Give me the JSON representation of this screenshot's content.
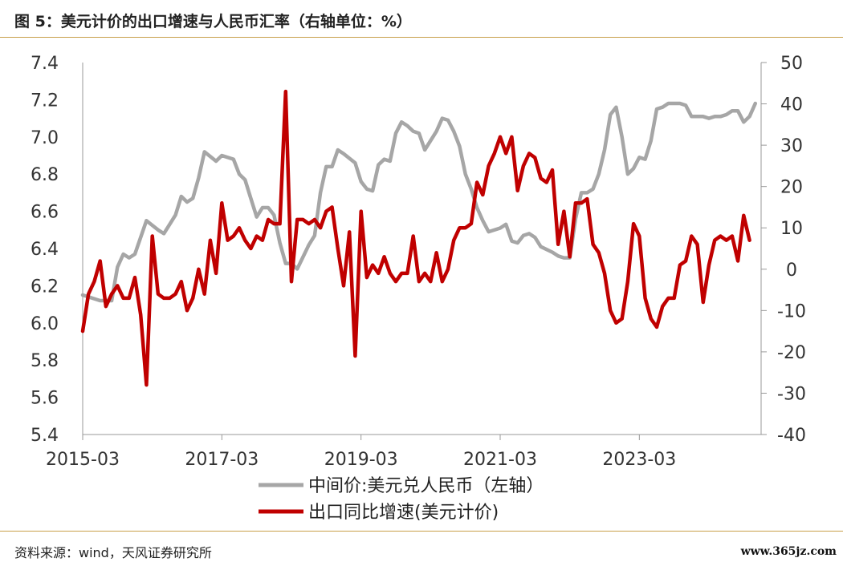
{
  "header": {
    "title": "图 5：美元计价的出口增速与人民币汇率（右轴单位：%）"
  },
  "footer": {
    "source": "资料来源：wind，天风证券研究所",
    "watermark": "www.365jz.com"
  },
  "chart_data": {
    "type": "line",
    "x_ticks": [
      "2015-03",
      "2017-03",
      "2019-03",
      "2021-03",
      "2023-03"
    ],
    "x_range": [
      "2015-03",
      "2024-12"
    ],
    "y_left": {
      "range": [
        5.4,
        7.4
      ],
      "ticks": [
        "5.4",
        "5.6",
        "5.8",
        "6.0",
        "6.2",
        "6.4",
        "6.6",
        "6.8",
        "7.0",
        "7.2",
        "7.4"
      ]
    },
    "y_right": {
      "range": [
        -40,
        50
      ],
      "ticks": [
        "-40",
        "-30",
        "-20",
        "-10",
        "0",
        "10",
        "20",
        "30",
        "40",
        "50"
      ]
    },
    "grid": false,
    "legend_position": "bottom-center",
    "series": [
      {
        "name": "中间价:美元兑人民币（左轴）",
        "axis": "left",
        "color": "#a6a6a6",
        "points": [
          [
            "2015-03",
            6.15
          ],
          [
            "2015-06",
            6.12
          ],
          [
            "2015-08",
            6.12
          ],
          [
            "2015-09",
            6.3
          ],
          [
            "2015-10",
            6.37
          ],
          [
            "2015-11",
            6.35
          ],
          [
            "2015-12",
            6.37
          ],
          [
            "2016-02",
            6.55
          ],
          [
            "2016-04",
            6.5
          ],
          [
            "2016-05",
            6.48
          ],
          [
            "2016-07",
            6.58
          ],
          [
            "2016-08",
            6.68
          ],
          [
            "2016-09",
            6.65
          ],
          [
            "2016-10",
            6.67
          ],
          [
            "2016-11",
            6.78
          ],
          [
            "2016-12",
            6.92
          ],
          [
            "2017-02",
            6.87
          ],
          [
            "2017-03",
            6.9
          ],
          [
            "2017-05",
            6.88
          ],
          [
            "2017-06",
            6.8
          ],
          [
            "2017-07",
            6.77
          ],
          [
            "2017-08",
            6.67
          ],
          [
            "2017-09",
            6.57
          ],
          [
            "2017-10",
            6.62
          ],
          [
            "2017-11",
            6.62
          ],
          [
            "2017-12",
            6.58
          ],
          [
            "2018-01",
            6.43
          ],
          [
            "2018-02",
            6.32
          ],
          [
            "2018-03",
            6.32
          ],
          [
            "2018-04",
            6.29
          ],
          [
            "2018-06",
            6.42
          ],
          [
            "2018-07",
            6.47
          ],
          [
            "2018-08",
            6.7
          ],
          [
            "2018-09",
            6.84
          ],
          [
            "2018-10",
            6.84
          ],
          [
            "2018-11",
            6.93
          ],
          [
            "2018-12",
            6.91
          ],
          [
            "2019-02",
            6.86
          ],
          [
            "2019-03",
            6.76
          ],
          [
            "2019-04",
            6.72
          ],
          [
            "2019-05",
            6.71
          ],
          [
            "2019-06",
            6.85
          ],
          [
            "2019-07",
            6.88
          ],
          [
            "2019-08",
            6.87
          ],
          [
            "2019-09",
            7.02
          ],
          [
            "2019-10",
            7.08
          ],
          [
            "2019-11",
            7.06
          ],
          [
            "2019-12",
            7.03
          ],
          [
            "2020-01",
            7.02
          ],
          [
            "2020-02",
            6.93
          ],
          [
            "2020-04",
            7.03
          ],
          [
            "2020-05",
            7.1
          ],
          [
            "2020-06",
            7.09
          ],
          [
            "2020-07",
            7.03
          ],
          [
            "2020-08",
            6.95
          ],
          [
            "2020-09",
            6.8
          ],
          [
            "2020-10",
            6.72
          ],
          [
            "2020-11",
            6.62
          ],
          [
            "2020-12",
            6.55
          ],
          [
            "2021-01",
            6.49
          ],
          [
            "2021-03",
            6.51
          ],
          [
            "2021-04",
            6.53
          ],
          [
            "2021-05",
            6.44
          ],
          [
            "2021-06",
            6.43
          ],
          [
            "2021-07",
            6.47
          ],
          [
            "2021-08",
            6.48
          ],
          [
            "2021-09",
            6.46
          ],
          [
            "2021-10",
            6.41
          ],
          [
            "2021-12",
            6.38
          ],
          [
            "2022-01",
            6.36
          ],
          [
            "2022-02",
            6.35
          ],
          [
            "2022-03",
            6.35
          ],
          [
            "2022-04",
            6.56
          ],
          [
            "2022-05",
            6.7
          ],
          [
            "2022-06",
            6.7
          ],
          [
            "2022-07",
            6.72
          ],
          [
            "2022-08",
            6.8
          ],
          [
            "2022-09",
            6.93
          ],
          [
            "2022-10",
            7.12
          ],
          [
            "2022-11",
            7.16
          ],
          [
            "2022-12",
            7.0
          ],
          [
            "2023-01",
            6.8
          ],
          [
            "2023-02",
            6.83
          ],
          [
            "2023-03",
            6.89
          ],
          [
            "2023-04",
            6.88
          ],
          [
            "2023-05",
            6.98
          ],
          [
            "2023-06",
            7.15
          ],
          [
            "2023-07",
            7.16
          ],
          [
            "2023-08",
            7.18
          ],
          [
            "2023-09",
            7.18
          ],
          [
            "2023-10",
            7.18
          ],
          [
            "2023-11",
            7.17
          ],
          [
            "2023-12",
            7.11
          ],
          [
            "2024-01",
            7.11
          ],
          [
            "2024-02",
            7.11
          ],
          [
            "2024-03",
            7.1
          ],
          [
            "2024-04",
            7.11
          ],
          [
            "2024-05",
            7.11
          ],
          [
            "2024-06",
            7.12
          ],
          [
            "2024-07",
            7.14
          ],
          [
            "2024-08",
            7.14
          ],
          [
            "2024-09",
            7.08
          ],
          [
            "2024-10",
            7.11
          ],
          [
            "2024-11",
            7.18
          ]
        ]
      },
      {
        "name": "出口同比增速(美元计价)",
        "axis": "right",
        "color": "#c00000",
        "points": [
          [
            "2015-03",
            -15
          ],
          [
            "2015-04",
            -6
          ],
          [
            "2015-05",
            -3
          ],
          [
            "2015-06",
            2
          ],
          [
            "2015-07",
            -9
          ],
          [
            "2015-08",
            -6
          ],
          [
            "2015-09",
            -4
          ],
          [
            "2015-10",
            -7
          ],
          [
            "2015-11",
            -7
          ],
          [
            "2015-12",
            -2
          ],
          [
            "2016-01",
            -11
          ],
          [
            "2016-02",
            -28
          ],
          [
            "2016-03",
            8
          ],
          [
            "2016-04",
            -6
          ],
          [
            "2016-05",
            -7
          ],
          [
            "2016-06",
            -7
          ],
          [
            "2016-07",
            -6
          ],
          [
            "2016-08",
            -3
          ],
          [
            "2016-09",
            -10
          ],
          [
            "2016-10",
            -7
          ],
          [
            "2016-11",
            0
          ],
          [
            "2016-12",
            -6
          ],
          [
            "2017-01",
            7
          ],
          [
            "2017-02",
            -1
          ],
          [
            "2017-03",
            16
          ],
          [
            "2017-04",
            7
          ],
          [
            "2017-05",
            8
          ],
          [
            "2017-06",
            10
          ],
          [
            "2017-07",
            7
          ],
          [
            "2017-08",
            5
          ],
          [
            "2017-09",
            8
          ],
          [
            "2017-10",
            7
          ],
          [
            "2017-11",
            12
          ],
          [
            "2017-12",
            11
          ],
          [
            "2018-01",
            11
          ],
          [
            "2018-02",
            43
          ],
          [
            "2018-03",
            -3
          ],
          [
            "2018-04",
            12
          ],
          [
            "2018-05",
            12
          ],
          [
            "2018-06",
            11
          ],
          [
            "2018-07",
            12
          ],
          [
            "2018-08",
            10
          ],
          [
            "2018-09",
            14
          ],
          [
            "2018-10",
            15
          ],
          [
            "2018-11",
            5
          ],
          [
            "2018-12",
            -4
          ],
          [
            "2019-01",
            9
          ],
          [
            "2019-02",
            -21
          ],
          [
            "2019-03",
            14
          ],
          [
            "2019-04",
            -2
          ],
          [
            "2019-05",
            1
          ],
          [
            "2019-06",
            -1
          ],
          [
            "2019-07",
            3
          ],
          [
            "2019-08",
            -1
          ],
          [
            "2019-09",
            -3
          ],
          [
            "2019-10",
            -1
          ],
          [
            "2019-11",
            -1
          ],
          [
            "2019-12",
            8
          ],
          [
            "2020-01",
            -3
          ],
          [
            "2020-02",
            -1
          ],
          [
            "2020-03",
            -3
          ],
          [
            "2020-04",
            4
          ],
          [
            "2020-05",
            -3
          ],
          [
            "2020-06",
            0
          ],
          [
            "2020-07",
            7
          ],
          [
            "2020-08",
            10
          ],
          [
            "2020-09",
            10
          ],
          [
            "2020-10",
            11
          ],
          [
            "2020-11",
            21
          ],
          [
            "2020-12",
            18
          ],
          [
            "2021-01",
            25
          ],
          [
            "2021-02",
            28
          ],
          [
            "2021-03",
            32
          ],
          [
            "2021-04",
            28
          ],
          [
            "2021-05",
            32
          ],
          [
            "2021-06",
            19
          ],
          [
            "2021-07",
            25
          ],
          [
            "2021-08",
            28
          ],
          [
            "2021-09",
            27
          ],
          [
            "2021-10",
            22
          ],
          [
            "2021-11",
            21
          ],
          [
            "2021-12",
            24
          ],
          [
            "2022-01",
            6
          ],
          [
            "2022-02",
            14
          ],
          [
            "2022-03",
            3
          ],
          [
            "2022-04",
            16
          ],
          [
            "2022-05",
            16
          ],
          [
            "2022-06",
            17
          ],
          [
            "2022-07",
            6
          ],
          [
            "2022-08",
            4
          ],
          [
            "2022-09",
            -1
          ],
          [
            "2022-10",
            -10
          ],
          [
            "2022-11",
            -13
          ],
          [
            "2022-12",
            -12
          ],
          [
            "2023-01",
            -3
          ],
          [
            "2023-02",
            11
          ],
          [
            "2023-03",
            8
          ],
          [
            "2023-04",
            -7
          ],
          [
            "2023-05",
            -12
          ],
          [
            "2023-06",
            -14
          ],
          [
            "2023-07",
            -9
          ],
          [
            "2023-08",
            -7
          ],
          [
            "2023-09",
            -7
          ],
          [
            "2023-10",
            1
          ],
          [
            "2023-11",
            2
          ],
          [
            "2023-12",
            8
          ],
          [
            "2024-01",
            6
          ],
          [
            "2024-02",
            -8
          ],
          [
            "2024-03",
            1
          ],
          [
            "2024-04",
            7
          ],
          [
            "2024-05",
            8
          ],
          [
            "2024-06",
            7
          ],
          [
            "2024-07",
            8
          ],
          [
            "2024-08",
            2
          ],
          [
            "2024-09",
            13
          ],
          [
            "2024-10",
            7
          ]
        ]
      }
    ]
  }
}
